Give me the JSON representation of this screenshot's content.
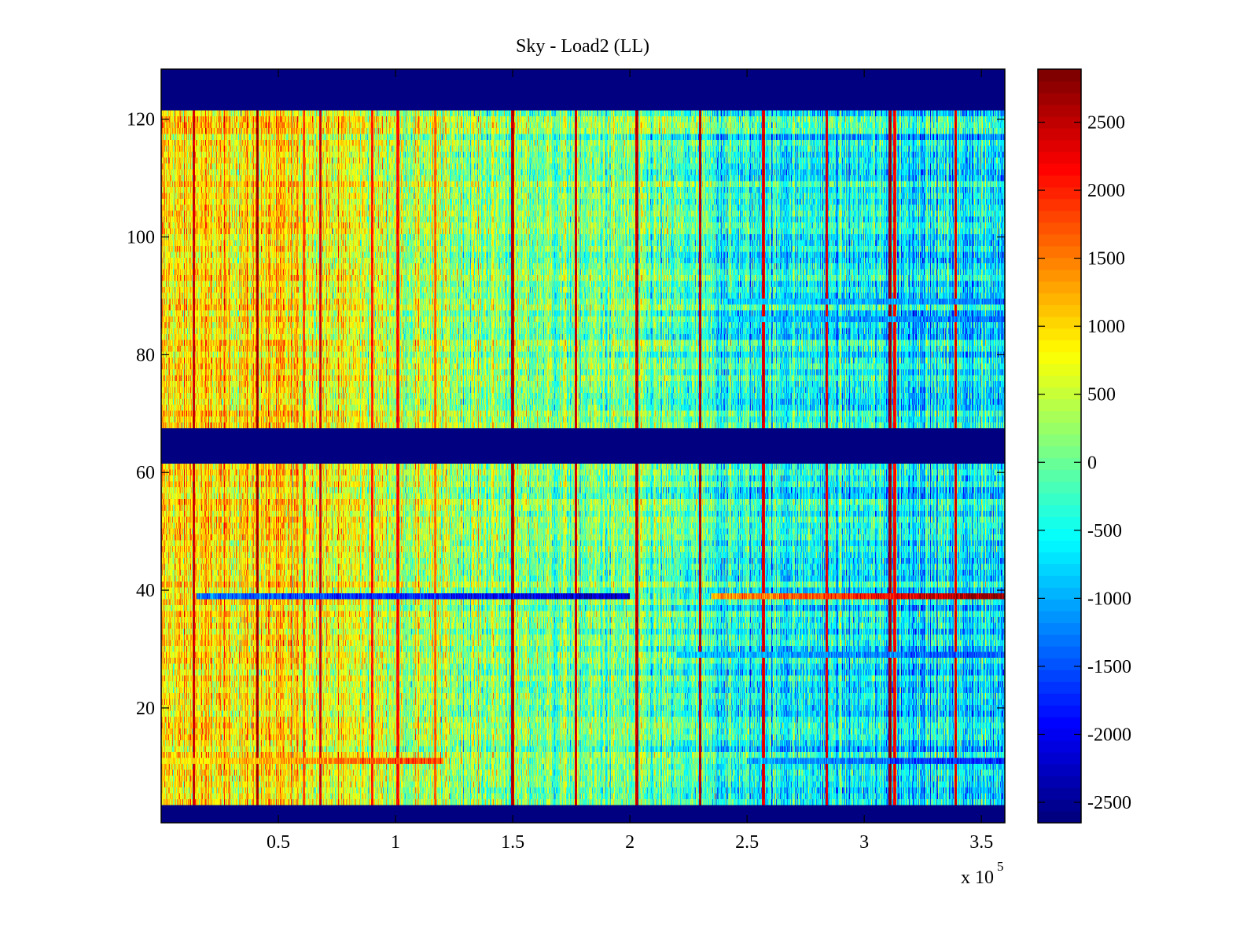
{
  "chart_data": {
    "type": "heatmap",
    "title": "Sky - Load2 (LL)",
    "xlabel": "",
    "ylabel": "",
    "x_exponent_label": "x 10",
    "x_exponent": "5",
    "xlim": [
      0,
      360000
    ],
    "ylim": [
      0.5,
      128.5
    ],
    "x_ticks": [
      50000,
      100000,
      150000,
      200000,
      250000,
      300000,
      350000
    ],
    "x_tick_labels": [
      "0.5",
      "1",
      "1.5",
      "2",
      "2.5",
      "3",
      "3.5"
    ],
    "y_ticks": [
      20,
      40,
      60,
      80,
      100,
      120
    ],
    "y_tick_labels": [
      "20",
      "40",
      "60",
      "80",
      "100",
      "120"
    ],
    "colormap": "jet",
    "clim": [
      -2650,
      2890
    ],
    "colorbar": {
      "ticks": [
        2500,
        2000,
        1500,
        1000,
        500,
        0,
        -500,
        -1000,
        -1500,
        -2000,
        -2500
      ],
      "tick_labels": [
        "2500",
        "2000",
        "1500",
        "1000",
        "500",
        "0",
        "-500",
        "-1000",
        "-1500",
        "-2000",
        "-2500"
      ],
      "placement": "right"
    },
    "rows": 128,
    "masked_row_ranges": [
      [
        1,
        3
      ],
      [
        62,
        67
      ],
      [
        122,
        128
      ]
    ],
    "masked_value": -2650,
    "background_trend": [
      {
        "x": 0,
        "value": 900
      },
      {
        "x": 50000,
        "value": 950
      },
      {
        "x": 100000,
        "value": 500
      },
      {
        "x": 150000,
        "value": 150
      },
      {
        "x": 200000,
        "value": 0
      },
      {
        "x": 250000,
        "value": -450
      },
      {
        "x": 300000,
        "value": -550
      },
      {
        "x": 360000,
        "value": -650
      }
    ],
    "vertical_features": [
      {
        "x": 14000,
        "value": 2600
      },
      {
        "x": 41000,
        "value": 2800
      },
      {
        "x": 61000,
        "value": 2000
      },
      {
        "x": 68000,
        "value": 2500
      },
      {
        "x": 90000,
        "value": 2200
      },
      {
        "x": 101000,
        "value": 2300
      },
      {
        "x": 117000,
        "value": 1800
      },
      {
        "x": 150000,
        "value": 2800
      },
      {
        "x": 177000,
        "value": 2600
      },
      {
        "x": 203000,
        "value": 2700
      },
      {
        "x": 230000,
        "value": 2700
      },
      {
        "x": 257000,
        "value": 2600
      },
      {
        "x": 284000,
        "value": 2500
      },
      {
        "x": 311000,
        "value": 2850
      },
      {
        "x": 313000,
        "value": 2400
      },
      {
        "x": 339000,
        "value": 2500
      }
    ],
    "horizontal_features": [
      {
        "row": 39,
        "x_start": 15000,
        "x_end": 200000,
        "value": -2300
      },
      {
        "row": 39,
        "x_start": 235000,
        "x_end": 360000,
        "value": 2800
      },
      {
        "row": 11,
        "x_start": 250000,
        "x_end": 360000,
        "value": -1800
      },
      {
        "row": 11,
        "x_start": 0,
        "x_end": 120000,
        "value": 1900
      },
      {
        "row": 29,
        "x_start": 220000,
        "x_end": 360000,
        "value": -1500
      },
      {
        "row": 86,
        "x_start": 240000,
        "x_end": 360000,
        "value": -1400
      },
      {
        "row": 89,
        "x_start": 240000,
        "x_end": 360000,
        "value": -1300
      }
    ]
  }
}
